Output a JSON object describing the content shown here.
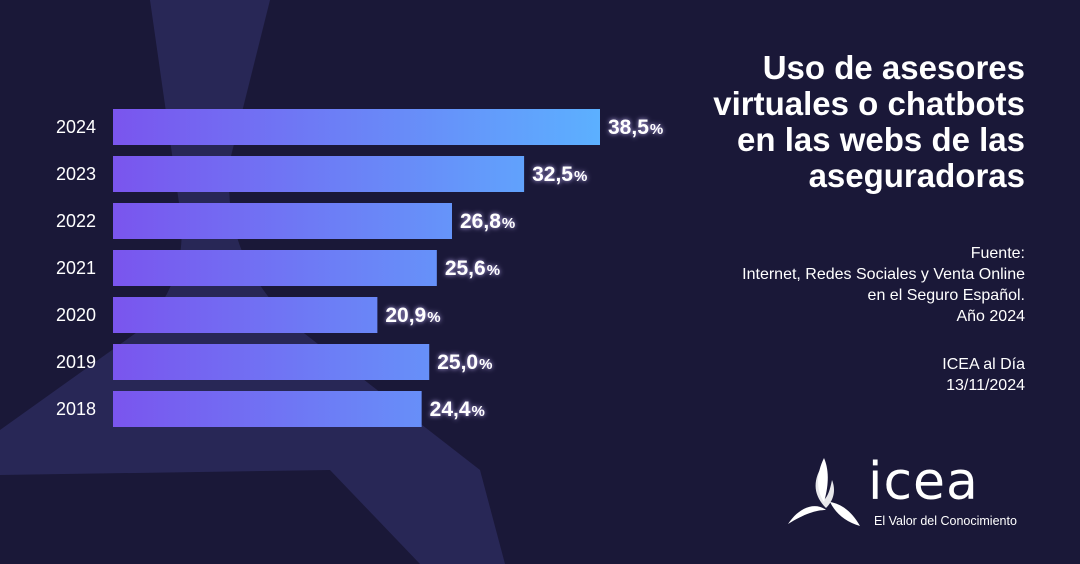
{
  "title_lines": [
    "Uso de asesores",
    "virtuales o chatbots",
    "en las webs de las",
    "aseguradoras"
  ],
  "source": {
    "label": "Fuente:",
    "lines": [
      "Internet, Redes Sociales y Venta Online",
      "en el Seguro Español.",
      "Año 2024"
    ]
  },
  "publication": {
    "name": "ICEA al Día",
    "date": "13/11/2024"
  },
  "logo": {
    "word": "icea",
    "tagline": "El Valor del Conocimiento"
  },
  "colors": {
    "bar_start": "#7a55ee",
    "bar_end": "#5cb0ff",
    "background": "#1a1838"
  },
  "chart_data": {
    "type": "bar",
    "orientation": "horizontal",
    "categories": [
      "2024",
      "2023",
      "2022",
      "2021",
      "2020",
      "2019",
      "2018"
    ],
    "values": [
      38.5,
      32.5,
      26.8,
      25.6,
      20.9,
      25.0,
      24.4
    ],
    "value_labels": [
      "38,5",
      "32,5",
      "26,8",
      "25,6",
      "20,9",
      "25,0",
      "24,4"
    ],
    "unit": "%",
    "xlim": [
      0,
      38.5
    ]
  }
}
